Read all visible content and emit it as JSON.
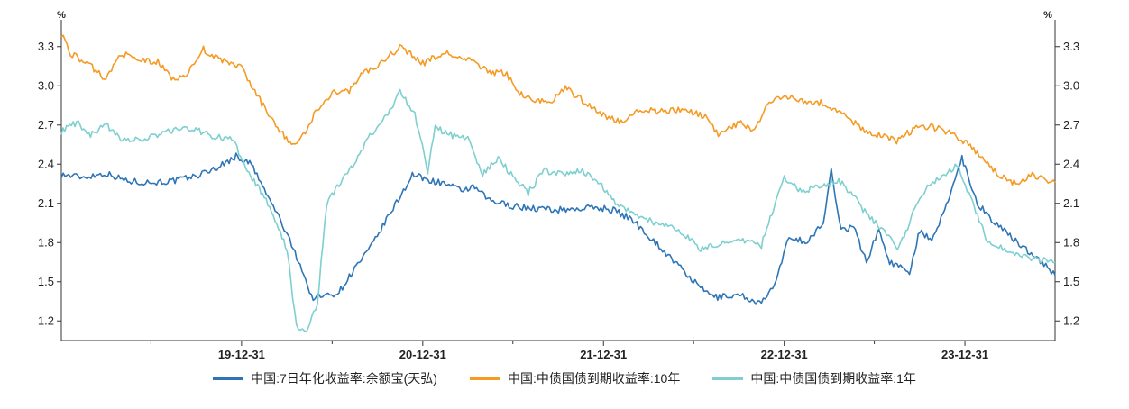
{
  "chart_data": {
    "type": "line",
    "y_unit_left": "%",
    "y_unit_right": "%",
    "ylim": [
      1.05,
      3.45
    ],
    "yticks": [
      1.2,
      1.5,
      1.8,
      2.1,
      2.4,
      2.7,
      3.0,
      3.3
    ],
    "ytick_labels": [
      "1.2",
      "1.5",
      "1.8",
      "2.1",
      "2.4",
      "2.7",
      "3.0",
      "3.3"
    ],
    "xlim": [
      "2019-01-01",
      "2024-06-30"
    ],
    "xtick_labels": [
      "19-12-31",
      "20-12-31",
      "21-12-31",
      "22-12-31",
      "23-12-31"
    ],
    "xtick_dates": [
      "2019-12-31",
      "2020-12-31",
      "2021-12-31",
      "2022-12-31",
      "2023-12-31"
    ],
    "series": [
      {
        "name": "中国:7日年化收益率:余额宝(天弘)",
        "color": "#2e75b6",
        "points": [
          [
            "2019-01-01",
            2.32
          ],
          [
            "2019-02-15",
            2.3
          ],
          [
            "2019-04-01",
            2.33
          ],
          [
            "2019-05-15",
            2.27
          ],
          [
            "2019-07-01",
            2.26
          ],
          [
            "2019-08-15",
            2.27
          ],
          [
            "2019-10-01",
            2.31
          ],
          [
            "2019-11-15",
            2.38
          ],
          [
            "2019-12-20",
            2.46
          ],
          [
            "2020-01-20",
            2.4
          ],
          [
            "2020-02-15",
            2.2
          ],
          [
            "2020-03-15",
            2.0
          ],
          [
            "2020-04-10",
            1.78
          ],
          [
            "2020-05-01",
            1.6
          ],
          [
            "2020-05-20",
            1.38
          ],
          [
            "2020-06-15",
            1.39
          ],
          [
            "2020-07-15",
            1.42
          ],
          [
            "2020-08-15",
            1.6
          ],
          [
            "2020-09-15",
            1.75
          ],
          [
            "2020-10-15",
            1.95
          ],
          [
            "2020-11-15",
            2.15
          ],
          [
            "2020-12-10",
            2.32
          ],
          [
            "2021-01-10",
            2.28
          ],
          [
            "2021-02-15",
            2.25
          ],
          [
            "2021-03-15",
            2.2
          ],
          [
            "2021-04-15",
            2.22
          ],
          [
            "2021-05-15",
            2.12
          ],
          [
            "2021-07-01",
            2.08
          ],
          [
            "2021-08-15",
            2.06
          ],
          [
            "2021-10-01",
            2.05
          ],
          [
            "2021-11-15",
            2.06
          ],
          [
            "2021-12-15",
            2.07
          ],
          [
            "2022-01-20",
            2.05
          ],
          [
            "2022-03-01",
            1.97
          ],
          [
            "2022-04-15",
            1.8
          ],
          [
            "2022-06-01",
            1.62
          ],
          [
            "2022-07-15",
            1.45
          ],
          [
            "2022-08-15",
            1.38
          ],
          [
            "2022-10-01",
            1.4
          ],
          [
            "2022-11-15",
            1.33
          ],
          [
            "2022-12-15",
            1.5
          ],
          [
            "2023-01-10",
            1.85
          ],
          [
            "2023-02-15",
            1.8
          ],
          [
            "2023-03-20",
            1.95
          ],
          [
            "2023-04-05",
            2.35
          ],
          [
            "2023-04-25",
            1.9
          ],
          [
            "2023-05-20",
            1.92
          ],
          [
            "2023-06-15",
            1.65
          ],
          [
            "2023-07-10",
            1.9
          ],
          [
            "2023-08-01",
            1.65
          ],
          [
            "2023-09-10",
            1.58
          ],
          [
            "2023-10-01",
            1.9
          ],
          [
            "2023-10-25",
            1.8
          ],
          [
            "2023-11-20",
            2.05
          ],
          [
            "2023-12-25",
            2.45
          ],
          [
            "2024-01-25",
            2.1
          ],
          [
            "2024-03-01",
            1.95
          ],
          [
            "2024-04-15",
            1.8
          ],
          [
            "2024-05-20",
            1.7
          ],
          [
            "2024-06-30",
            1.55
          ]
        ]
      },
      {
        "name": "中国:中债国债到期收益率:10年",
        "color": "#f59a23",
        "points": [
          [
            "2019-01-01",
            3.4
          ],
          [
            "2019-01-20",
            3.25
          ],
          [
            "2019-03-01",
            3.15
          ],
          [
            "2019-04-01",
            3.05
          ],
          [
            "2019-05-01",
            3.25
          ],
          [
            "2019-06-01",
            3.2
          ],
          [
            "2019-07-15",
            3.18
          ],
          [
            "2019-08-15",
            3.05
          ],
          [
            "2019-09-15",
            3.1
          ],
          [
            "2019-10-15",
            3.28
          ],
          [
            "2019-11-15",
            3.2
          ],
          [
            "2019-12-31",
            3.14
          ],
          [
            "2020-01-20",
            3.0
          ],
          [
            "2020-02-20",
            2.8
          ],
          [
            "2020-03-20",
            2.65
          ],
          [
            "2020-04-10",
            2.55
          ],
          [
            "2020-05-01",
            2.6
          ],
          [
            "2020-06-01",
            2.82
          ],
          [
            "2020-07-01",
            2.95
          ],
          [
            "2020-08-01",
            2.95
          ],
          [
            "2020-09-01",
            3.1
          ],
          [
            "2020-10-01",
            3.15
          ],
          [
            "2020-11-15",
            3.3
          ],
          [
            "2020-12-31",
            3.17
          ],
          [
            "2021-01-15",
            3.2
          ],
          [
            "2021-02-15",
            3.25
          ],
          [
            "2021-03-15",
            3.22
          ],
          [
            "2021-04-15",
            3.18
          ],
          [
            "2021-05-15",
            3.1
          ],
          [
            "2021-06-15",
            3.1
          ],
          [
            "2021-07-15",
            2.95
          ],
          [
            "2021-08-15",
            2.88
          ],
          [
            "2021-09-15",
            2.88
          ],
          [
            "2021-10-15",
            2.98
          ],
          [
            "2021-11-15",
            2.9
          ],
          [
            "2021-12-31",
            2.78
          ],
          [
            "2022-02-01",
            2.72
          ],
          [
            "2022-03-15",
            2.82
          ],
          [
            "2022-05-01",
            2.8
          ],
          [
            "2022-06-15",
            2.82
          ],
          [
            "2022-08-01",
            2.75
          ],
          [
            "2022-08-20",
            2.62
          ],
          [
            "2022-10-01",
            2.72
          ],
          [
            "2022-11-01",
            2.65
          ],
          [
            "2022-12-01",
            2.88
          ],
          [
            "2023-01-15",
            2.92
          ],
          [
            "2023-02-15",
            2.88
          ],
          [
            "2023-03-15",
            2.87
          ],
          [
            "2023-04-20",
            2.8
          ],
          [
            "2023-06-15",
            2.65
          ],
          [
            "2023-08-15",
            2.58
          ],
          [
            "2023-10-01",
            2.7
          ],
          [
            "2023-11-15",
            2.67
          ],
          [
            "2023-12-31",
            2.57
          ],
          [
            "2024-02-01",
            2.45
          ],
          [
            "2024-03-15",
            2.3
          ],
          [
            "2024-04-15",
            2.25
          ],
          [
            "2024-05-15",
            2.32
          ],
          [
            "2024-06-30",
            2.26
          ]
        ]
      },
      {
        "name": "中国:中债国债到期收益率:1年",
        "color": "#7ecfcf",
        "points": [
          [
            "2019-01-01",
            2.65
          ],
          [
            "2019-02-01",
            2.72
          ],
          [
            "2019-03-01",
            2.62
          ],
          [
            "2019-04-01",
            2.7
          ],
          [
            "2019-05-01",
            2.6
          ],
          [
            "2019-06-15",
            2.58
          ],
          [
            "2019-08-01",
            2.65
          ],
          [
            "2019-09-15",
            2.68
          ],
          [
            "2019-11-01",
            2.62
          ],
          [
            "2019-12-15",
            2.58
          ],
          [
            "2020-01-15",
            2.32
          ],
          [
            "2020-02-15",
            2.15
          ],
          [
            "2020-03-15",
            1.9
          ],
          [
            "2020-04-01",
            1.75
          ],
          [
            "2020-04-20",
            1.15
          ],
          [
            "2020-05-10",
            1.12
          ],
          [
            "2020-06-01",
            1.32
          ],
          [
            "2020-06-20",
            2.1
          ],
          [
            "2020-07-15",
            2.25
          ],
          [
            "2020-08-15",
            2.4
          ],
          [
            "2020-09-15",
            2.62
          ],
          [
            "2020-10-15",
            2.75
          ],
          [
            "2020-11-15",
            2.95
          ],
          [
            "2020-12-15",
            2.78
          ],
          [
            "2021-01-10",
            2.35
          ],
          [
            "2021-01-25",
            2.68
          ],
          [
            "2021-03-01",
            2.62
          ],
          [
            "2021-04-01",
            2.6
          ],
          [
            "2021-05-01",
            2.32
          ],
          [
            "2021-06-01",
            2.45
          ],
          [
            "2021-07-01",
            2.3
          ],
          [
            "2021-08-01",
            2.18
          ],
          [
            "2021-09-01",
            2.35
          ],
          [
            "2021-10-15",
            2.32
          ],
          [
            "2021-11-15",
            2.36
          ],
          [
            "2021-12-31",
            2.22
          ],
          [
            "2022-01-31",
            2.08
          ],
          [
            "2022-03-01",
            2.03
          ],
          [
            "2022-04-15",
            1.95
          ],
          [
            "2022-06-01",
            1.9
          ],
          [
            "2022-07-15",
            1.75
          ],
          [
            "2022-08-15",
            1.78
          ],
          [
            "2022-10-01",
            1.82
          ],
          [
            "2022-11-15",
            1.78
          ],
          [
            "2022-12-31",
            2.3
          ],
          [
            "2023-02-01",
            2.2
          ],
          [
            "2023-03-15",
            2.22
          ],
          [
            "2023-04-20",
            2.28
          ],
          [
            "2023-05-15",
            2.18
          ],
          [
            "2023-06-15",
            2.02
          ],
          [
            "2023-07-15",
            1.9
          ],
          [
            "2023-08-20",
            1.75
          ],
          [
            "2023-09-20",
            2.05
          ],
          [
            "2023-10-20",
            2.25
          ],
          [
            "2023-11-15",
            2.3
          ],
          [
            "2023-12-15",
            2.4
          ],
          [
            "2024-01-15",
            2.1
          ],
          [
            "2024-02-15",
            1.8
          ],
          [
            "2024-03-20",
            1.75
          ],
          [
            "2024-04-20",
            1.7
          ],
          [
            "2024-05-20",
            1.68
          ],
          [
            "2024-06-30",
            1.65
          ]
        ]
      }
    ]
  }
}
